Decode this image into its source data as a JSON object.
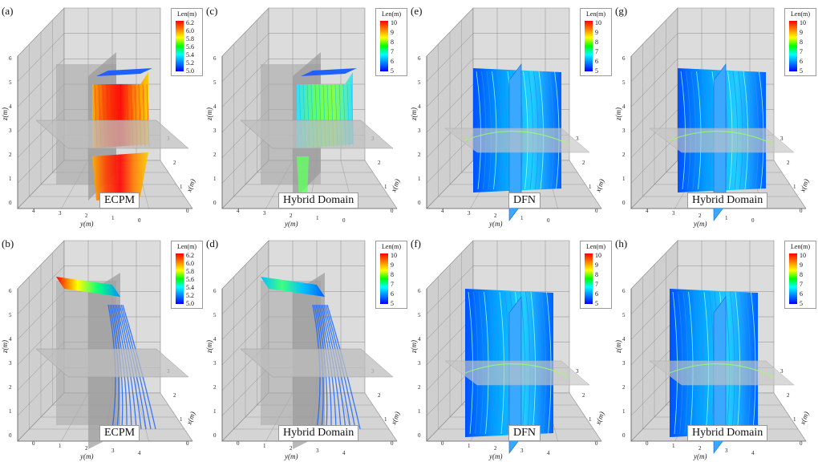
{
  "panels": [
    {
      "label": "(a)",
      "domain_label": "ECPM",
      "ticks": [
        "6.2",
        "6.0",
        "5.8",
        "5.6",
        "5.4",
        "5.2",
        "5.0"
      ],
      "palette": "ecpm",
      "kind": "ecpm-block"
    },
    {
      "label": "(c)",
      "domain_label": "Hybrid Domain",
      "ticks": [
        "10",
        "9",
        "8",
        "7",
        "6",
        "5"
      ],
      "palette": "hybrid",
      "kind": "hybrid-block"
    },
    {
      "label": "(e)",
      "domain_label": "DFN",
      "ticks": [
        "10",
        "9",
        "8",
        "7",
        "6",
        "5"
      ],
      "palette": "dfn",
      "kind": "dfn"
    },
    {
      "label": "(g)",
      "domain_label": "Hybrid Domain",
      "ticks": [
        "10",
        "9",
        "8",
        "7",
        "6",
        "5"
      ],
      "palette": "dfn",
      "kind": "dfn"
    },
    {
      "label": "(b)",
      "domain_label": "ECPM",
      "ticks": [
        "6.2",
        "6.0",
        "5.8",
        "5.6",
        "5.4",
        "5.2",
        "5.0"
      ],
      "palette": "ecpm",
      "kind": "top-block"
    },
    {
      "label": "(d)",
      "domain_label": "Hybrid Domain",
      "ticks": [
        "10",
        "9",
        "8",
        "7",
        "6",
        "5"
      ],
      "palette": "hybrid",
      "kind": "top-block"
    },
    {
      "label": "(f)",
      "domain_label": "DFN",
      "ticks": [
        "10",
        "9",
        "8",
        "7",
        "6",
        "5"
      ],
      "palette": "dfn",
      "kind": "dfn2"
    },
    {
      "label": "(h)",
      "domain_label": "Hybrid Domain",
      "ticks": [
        "10",
        "9",
        "8",
        "7",
        "6",
        "5"
      ],
      "palette": "dfn",
      "kind": "dfn2"
    }
  ],
  "legend_title": "Len(m)",
  "axes": {
    "z_label": "z(m)",
    "y_label": "y(m)",
    "x_label": "x(m)",
    "z_ticks": [
      "0",
      "1",
      "2",
      "3",
      "4",
      "5",
      "6"
    ],
    "y_ticks_top": [
      "4",
      "3",
      "2",
      "1",
      "0"
    ],
    "y_ticks_bottom": [
      "0",
      "1",
      "2",
      "3",
      "4"
    ],
    "x_ticks": [
      "0",
      "1",
      "2",
      "3"
    ]
  },
  "colors": {
    "rainbow": [
      "#ff0000",
      "#ff8000",
      "#ffff00",
      "#00ff00",
      "#00ffff",
      "#0080ff",
      "#0000ff"
    ],
    "frame": "#c6c6c6",
    "plane": "#a8a8a8",
    "grid": "#7a7a7a"
  }
}
